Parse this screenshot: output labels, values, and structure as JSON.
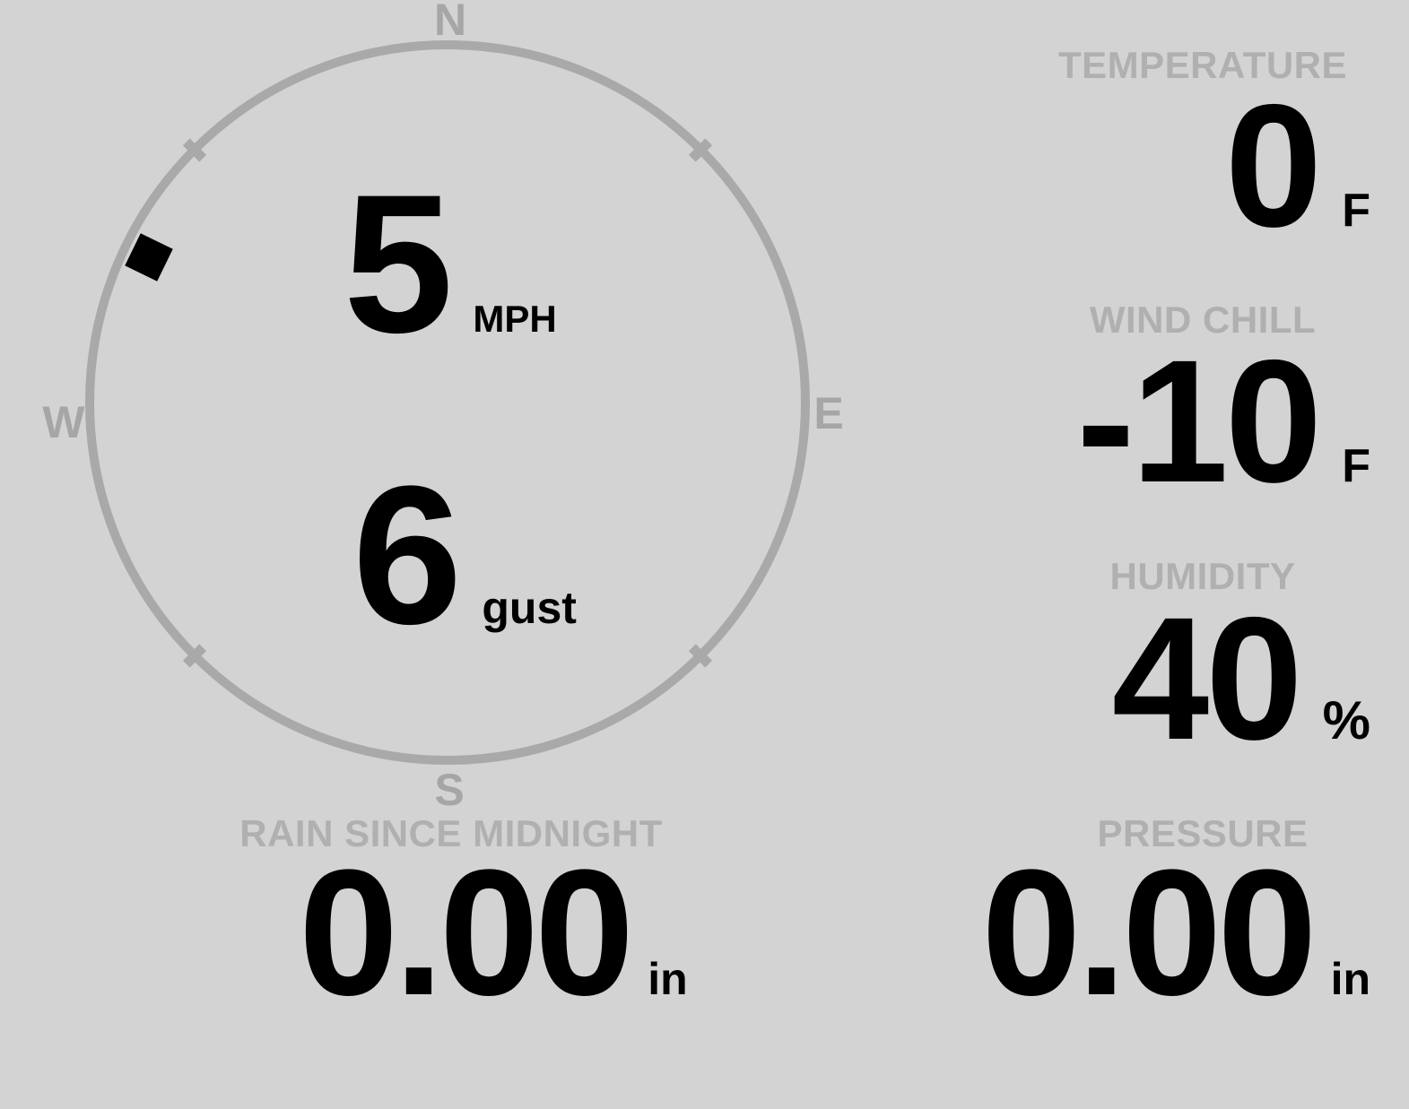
{
  "colors": {
    "background": "#d3d3d3",
    "gauge_gray": "#a9a9a9",
    "label_gray": "#b0b0b0",
    "value_black": "#000000"
  },
  "compass": {
    "cardinal": {
      "north": "N",
      "east": "E",
      "south": "S",
      "west": "W"
    },
    "wind_speed": {
      "value": "5",
      "unit": "MPH"
    },
    "wind_gust": {
      "value": "6",
      "unit": "gust"
    },
    "direction_bearing_deg": 296
  },
  "stats": {
    "temperature": {
      "label": "TEMPERATURE",
      "value": "0",
      "unit": "F"
    },
    "wind_chill": {
      "label": "WIND CHILL",
      "value": "-10",
      "unit": "F"
    },
    "humidity": {
      "label": "HUMIDITY",
      "value": "40",
      "unit": "%"
    },
    "rain": {
      "label": "RAIN SINCE MIDNIGHT",
      "value": "0.00",
      "unit": "in"
    },
    "pressure": {
      "label": "PRESSURE",
      "value": "0.00",
      "unit": "in"
    }
  }
}
